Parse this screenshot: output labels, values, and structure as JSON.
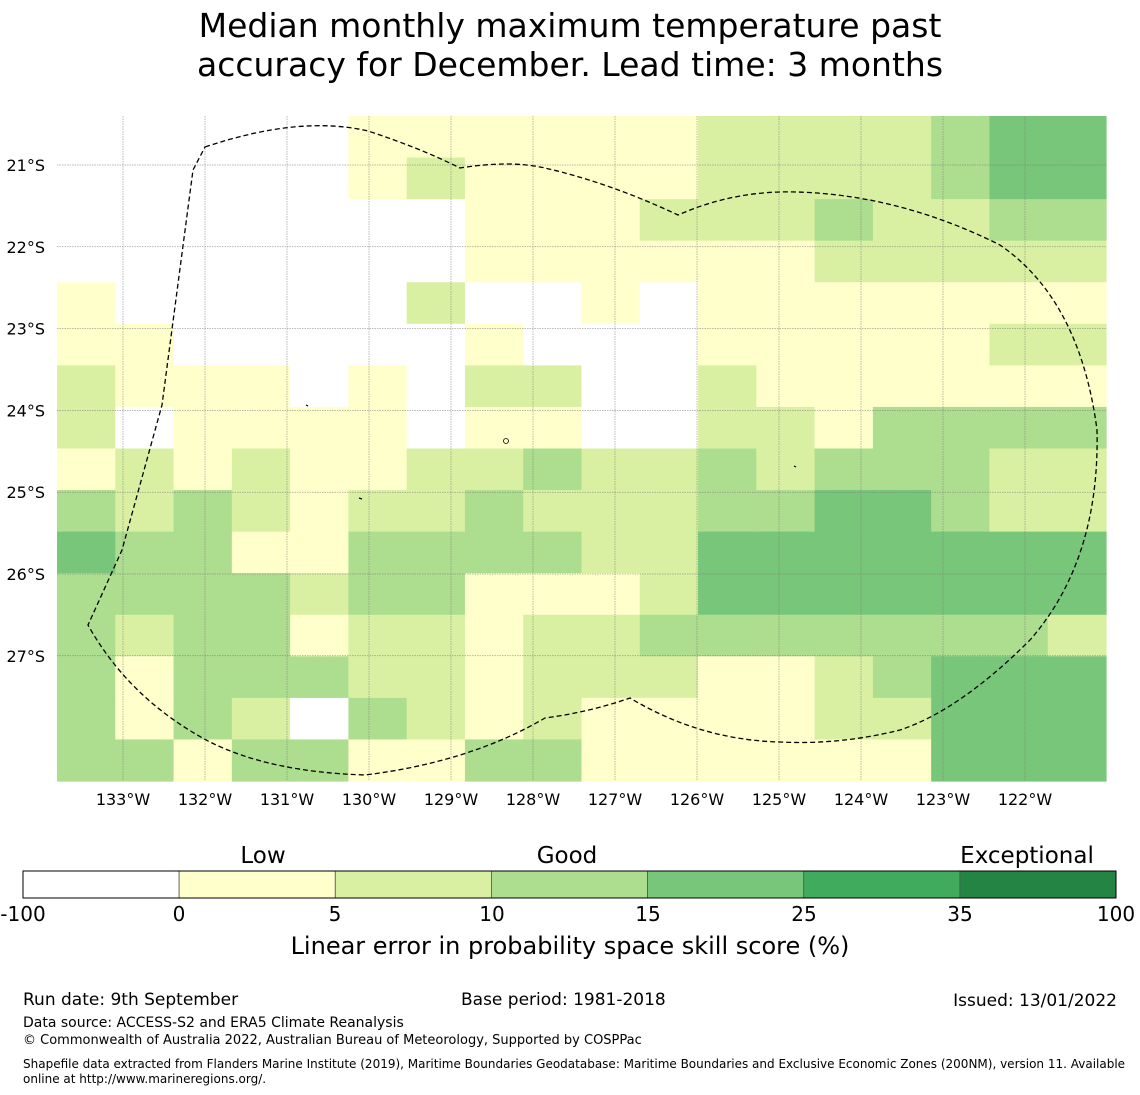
{
  "title_line1": "Median monthly maximum temperature past",
  "title_line2": "accuracy for December. Lead time: 3 months",
  "chart_data": {
    "type": "heatmap",
    "x_ticks": [
      "133°W",
      "132°W",
      "131°W",
      "130°W",
      "129°W",
      "128°W",
      "127°W",
      "126°W",
      "125°W",
      "124°W",
      "123°W",
      "122°W"
    ],
    "y_ticks": [
      "21°S",
      "22°S",
      "23°S",
      "24°S",
      "25°S",
      "26°S",
      "27°S"
    ],
    "x_tick_values": [
      -133,
      -132,
      -131,
      -130,
      -129,
      -128,
      -127,
      -126,
      -125,
      -124,
      -123,
      -122
    ],
    "y_tick_values": [
      -21,
      -22,
      -23,
      -24,
      -25,
      -26,
      -27
    ],
    "xlim": [
      -133.8,
      -121.0
    ],
    "ylim": [
      -28.5,
      -20.4
    ],
    "grid": true,
    "cell_size_deg": [
      0.833,
      0.555
    ],
    "cell_values_by_row_north_to_south": [
      [
        null,
        null,
        null,
        null,
        null,
        0,
        1,
        3,
        3,
        3,
        3,
        7,
        7,
        7,
        7,
        12,
        20,
        20
      ],
      [
        null,
        null,
        null,
        null,
        null,
        3,
        7,
        3,
        3,
        3,
        3,
        7,
        7,
        7,
        7,
        12,
        20,
        20
      ],
      [
        null,
        -50,
        -50,
        -50,
        -50,
        -50,
        -50,
        3,
        3,
        3,
        7,
        7,
        7,
        12,
        7,
        7,
        12,
        12
      ],
      [
        null,
        -50,
        -50,
        -50,
        -50,
        -50,
        -50,
        3,
        3,
        3,
        3,
        3,
        3,
        7,
        7,
        7,
        7,
        7
      ],
      [
        3,
        -50,
        -50,
        -50,
        -50,
        -50,
        7,
        -50,
        -50,
        3,
        -50,
        3,
        3,
        3,
        3,
        3,
        3,
        3
      ],
      [
        3,
        3,
        -50,
        -50,
        -50,
        -50,
        -50,
        3,
        -50,
        -50,
        -50,
        3,
        3,
        3,
        3,
        3,
        7,
        7
      ],
      [
        7,
        3,
        3,
        3,
        -50,
        3,
        -50,
        7,
        7,
        -50,
        -50,
        7,
        3,
        3,
        3,
        3,
        3,
        3
      ],
      [
        7,
        -50,
        3,
        3,
        3,
        3,
        -50,
        3,
        3,
        -50,
        -50,
        7,
        7,
        3,
        12,
        12,
        12,
        12
      ],
      [
        3,
        7,
        3,
        7,
        3,
        3,
        7,
        7,
        12,
        7,
        7,
        12,
        7,
        12,
        12,
        12,
        7,
        7
      ],
      [
        12,
        7,
        12,
        7,
        3,
        7,
        7,
        12,
        7,
        7,
        7,
        12,
        12,
        20,
        20,
        12,
        7,
        7
      ],
      [
        20,
        12,
        12,
        3,
        3,
        12,
        12,
        12,
        12,
        7,
        7,
        20,
        20,
        20,
        20,
        20,
        20,
        20
      ],
      [
        12,
        12,
        12,
        12,
        7,
        12,
        12,
        3,
        3,
        3,
        7,
        20,
        20,
        20,
        20,
        20,
        20,
        20
      ],
      [
        12,
        7,
        12,
        12,
        3,
        7,
        7,
        3,
        7,
        7,
        12,
        12,
        12,
        12,
        12,
        12,
        12,
        7
      ],
      [
        12,
        3,
        12,
        12,
        12,
        7,
        7,
        3,
        7,
        7,
        7,
        3,
        3,
        7,
        12,
        20,
        20,
        20
      ],
      [
        12,
        3,
        12,
        7,
        -50,
        12,
        7,
        3,
        7,
        3,
        3,
        3,
        3,
        7,
        7,
        20,
        20,
        20
      ],
      [
        12,
        12,
        3,
        12,
        12,
        3,
        3,
        12,
        12,
        3,
        3,
        3,
        3,
        3,
        3,
        20,
        20,
        20
      ]
    ]
  },
  "colorbar": {
    "category_labels": [
      "Low",
      "Good",
      "Exceptional"
    ],
    "ticks": [
      "-100",
      "0",
      "5",
      "10",
      "15",
      "25",
      "35",
      "100"
    ],
    "bins": [
      {
        "from": -100,
        "to": 0,
        "color": "#ffffff"
      },
      {
        "from": 0,
        "to": 5,
        "color": "#ffffcc"
      },
      {
        "from": 5,
        "to": 10,
        "color": "#d9f0a3"
      },
      {
        "from": 10,
        "to": 15,
        "color": "#addd8e"
      },
      {
        "from": 15,
        "to": 25,
        "color": "#78c679"
      },
      {
        "from": 25,
        "to": 35,
        "color": "#41ab5d"
      },
      {
        "from": 35,
        "to": 100,
        "color": "#238443"
      }
    ],
    "label": "Linear error in probability space skill score (%)"
  },
  "footer": {
    "run_date": "Run date: 9th September",
    "base_period": "Base period: 1981-2018",
    "issued": "Issued: 13/01/2022",
    "data_source": "Data source: ACCESS-S2 and ERA5 Climate Reanalysis",
    "copyright": "© Commonwealth of Australia 2022, Australian Bureau of Meteorology, Supported by COSPPac",
    "shapefile_line1": "Shapefile data extracted from Flanders Marine Institute (2019), Maritime Boundaries Geodatabase: Maritime Boundaries and Exclusive Economic Zones (200NM), version 11. Available",
    "shapefile_line2": "online at http://www.marineregions.org/."
  }
}
